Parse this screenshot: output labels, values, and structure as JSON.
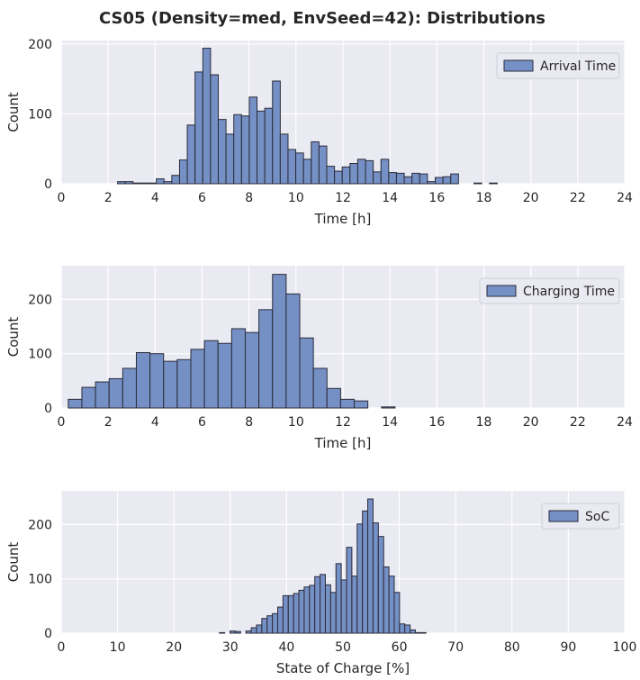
{
  "title": "CS05 (Density=med, EnvSeed=42): Distributions",
  "colors": {
    "bar": "#7590c4",
    "edge": "#2b2b3b",
    "background": "#eaeaf2",
    "grid": "#ffffff"
  },
  "chart_data": [
    {
      "type": "bar",
      "xlabel": "Time [h]",
      "ylabel": "Count",
      "xlim": [
        0,
        24
      ],
      "ylim": [
        0,
        205
      ],
      "xticks": [
        "0",
        "2",
        "4",
        "6",
        "8",
        "10",
        "12",
        "14",
        "16",
        "18",
        "20",
        "22",
        "24"
      ],
      "yticks": [
        "0",
        "100",
        "200"
      ],
      "grid": true,
      "legend_position": "top-right",
      "series": [
        {
          "name": "Arrival Time",
          "bin_width": 0.33,
          "bin_starts": [
            2.4,
            2.73,
            3.06,
            3.39,
            3.72,
            4.05,
            4.38,
            4.71,
            5.04,
            5.37,
            5.7,
            6.03,
            6.36,
            6.69,
            7.02,
            7.35,
            7.68,
            8.01,
            8.34,
            8.67,
            9.0,
            9.33,
            9.66,
            9.99,
            10.32,
            10.65,
            10.98,
            11.31,
            11.64,
            11.97,
            12.3,
            12.63,
            12.96,
            13.29,
            13.62,
            13.95,
            14.28,
            14.61,
            14.94,
            15.27,
            15.6,
            15.93,
            16.26,
            16.59,
            16.92,
            17.25,
            17.58,
            17.91,
            18.24,
            18.57
          ],
          "values": [
            3,
            3,
            1,
            1,
            1,
            7,
            3,
            12,
            34,
            84,
            160,
            194,
            156,
            92,
            71,
            99,
            97,
            124,
            104,
            108,
            147,
            71,
            49,
            44,
            35,
            60,
            54,
            25,
            18,
            24,
            29,
            35,
            33,
            17,
            35,
            16,
            15,
            10,
            15,
            14,
            3,
            9,
            10,
            14,
            0,
            0,
            1,
            0,
            1,
            0
          ]
        }
      ]
    },
    {
      "type": "bar",
      "xlabel": "Time [h]",
      "ylabel": "Count",
      "xlim": [
        0,
        24
      ],
      "ylim": [
        0,
        262
      ],
      "xticks": [
        "0",
        "2",
        "4",
        "6",
        "8",
        "10",
        "12",
        "14",
        "16",
        "18",
        "20",
        "22",
        "24"
      ],
      "yticks": [
        "0",
        "100",
        "200"
      ],
      "grid": true,
      "legend_position": "top-right",
      "series": [
        {
          "name": "Charging Time",
          "bin_width": 0.58,
          "bin_starts": [
            0.3,
            0.88,
            1.46,
            2.04,
            2.62,
            3.2,
            3.78,
            4.36,
            4.94,
            5.52,
            6.1,
            6.68,
            7.26,
            7.84,
            8.42,
            9.0,
            9.58,
            10.16,
            10.74,
            11.32,
            11.9,
            12.48,
            13.06,
            13.64
          ],
          "values": [
            16,
            38,
            48,
            54,
            73,
            102,
            100,
            86,
            89,
            108,
            124,
            119,
            146,
            139,
            181,
            246,
            210,
            129,
            73,
            36,
            16,
            13,
            0,
            2
          ]
        }
      ]
    },
    {
      "type": "bar",
      "xlabel": "State of Charge [%]",
      "ylabel": "Count",
      "xlim": [
        0,
        100
      ],
      "ylim": [
        0,
        262
      ],
      "xticks": [
        "0",
        "10",
        "20",
        "30",
        "40",
        "50",
        "60",
        "70",
        "80",
        "90",
        "100"
      ],
      "yticks": [
        "0",
        "100",
        "200"
      ],
      "grid": true,
      "legend_position": "top-right",
      "series": [
        {
          "name": "SoC",
          "bin_width": 0.94,
          "bin_starts": [
            26.2,
            27.14,
            28.08,
            29.02,
            29.96,
            30.9,
            31.84,
            32.78,
            33.72,
            34.66,
            35.6,
            36.54,
            37.48,
            38.42,
            39.36,
            40.3,
            41.24,
            42.18,
            43.12,
            44.06,
            45.0,
            45.94,
            46.88,
            47.82,
            48.76,
            49.7,
            50.64,
            51.58,
            52.52,
            53.46,
            54.4,
            55.34,
            56.28,
            57.22,
            58.16,
            59.1,
            60.04,
            60.98,
            61.92,
            62.86,
            63.8,
            64.74,
            65.68,
            66.62,
            67.56,
            68.5
          ],
          "values": [
            0,
            0,
            1,
            0,
            4,
            3,
            0,
            4,
            10,
            15,
            27,
            32,
            36,
            48,
            69,
            69,
            73,
            79,
            85,
            88,
            104,
            108,
            89,
            75,
            128,
            98,
            158,
            105,
            201,
            225,
            247,
            203,
            178,
            122,
            105,
            75,
            17,
            15,
            6,
            1,
            1,
            0,
            0,
            0,
            0,
            0
          ]
        }
      ]
    }
  ]
}
